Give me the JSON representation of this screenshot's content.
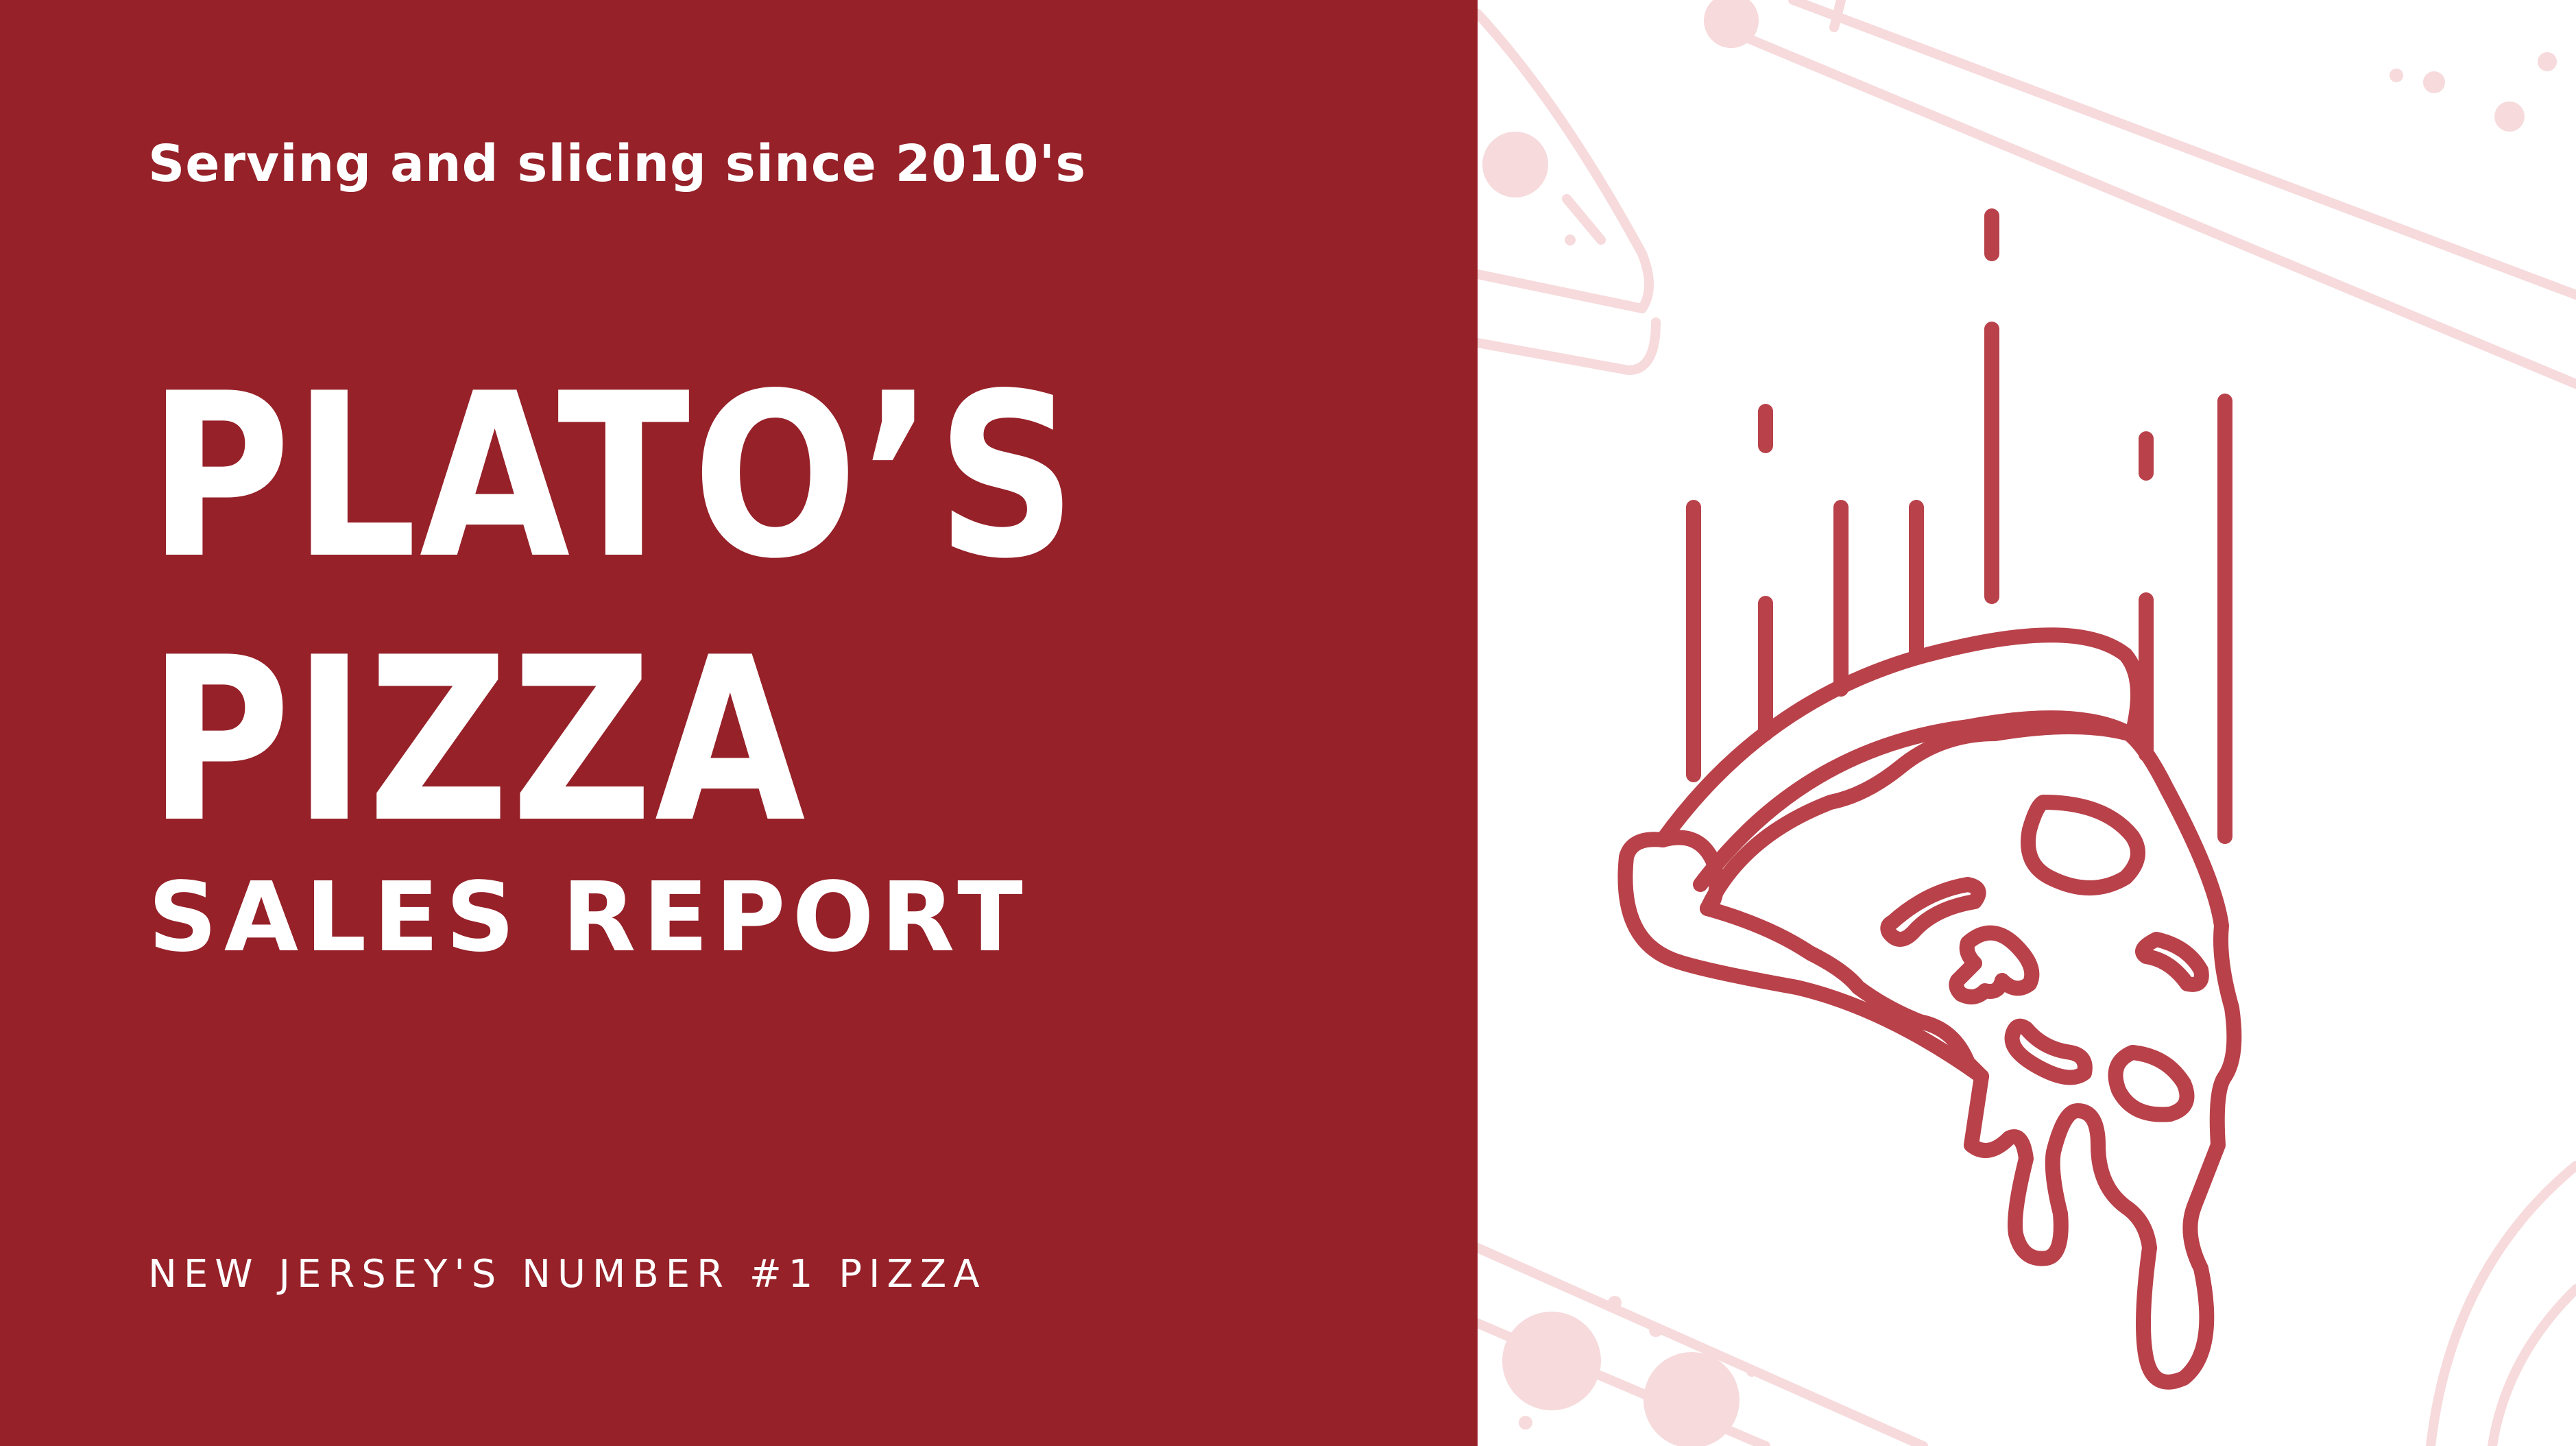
{
  "tagline": "Serving and slicing since 2010's",
  "title": {
    "line1": "PLATO’S",
    "line2": "PIZZA"
  },
  "subtitle": "SALES REPORT",
  "footer_note": "NEW JERSEY'S NUMBER #1 PIZZA",
  "colors": {
    "brand_red": "#962129",
    "illustration_red": "#B9414A",
    "watermark_pink": "#F6DADC",
    "text": "#FFFFFF"
  },
  "icons": {
    "hero": "falling-pizza-slice-icon",
    "background": "pizza-slice-watermark-pattern"
  }
}
